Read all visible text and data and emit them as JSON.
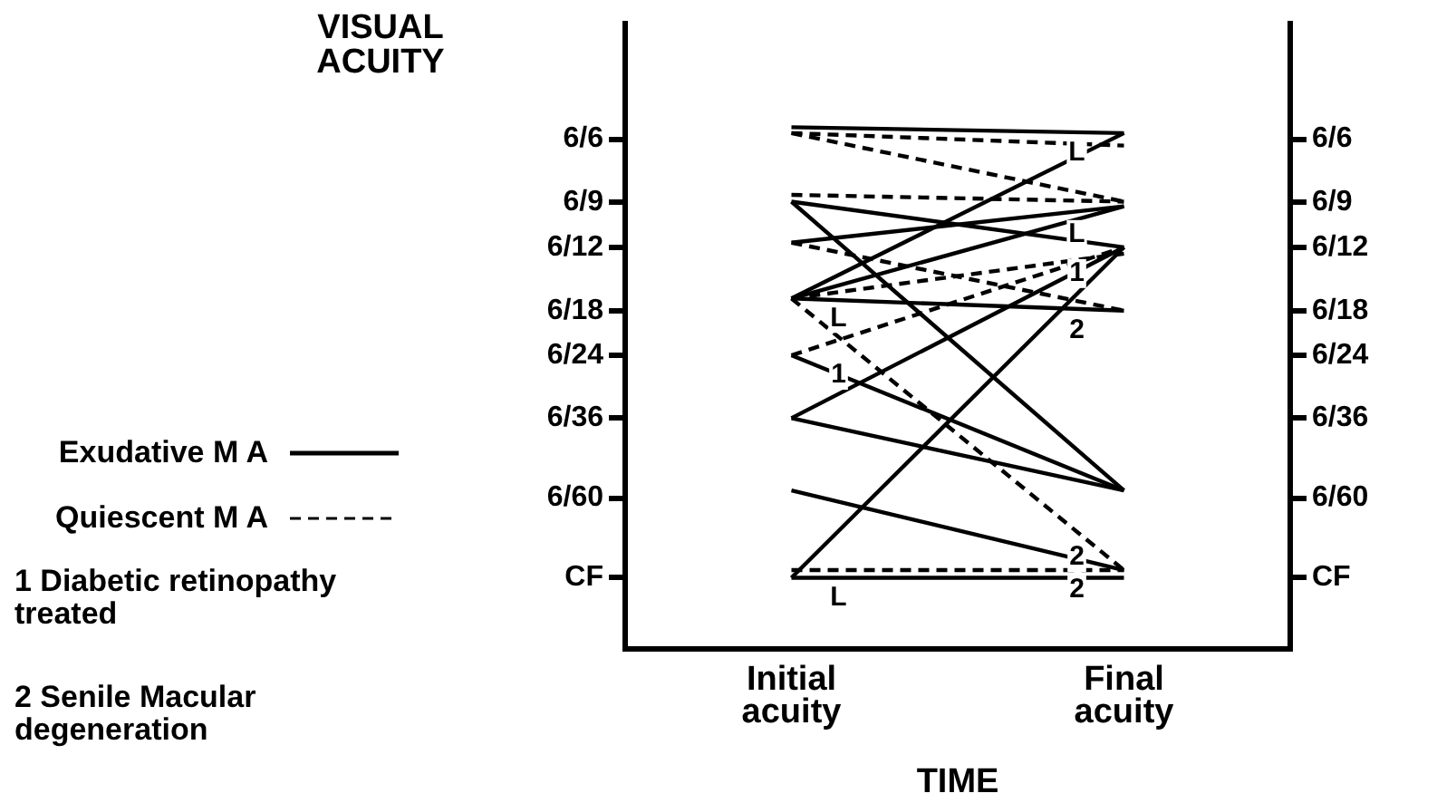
{
  "chart_data": {
    "type": "line",
    "log": true,
    "ylabel": "VISUAL ACUITY",
    "xlabel": "TIME",
    "categories": [
      "Initial acuity",
      "Final acuity"
    ],
    "ylim": [
      0.038,
      2.1
    ],
    "yticks": [
      {
        "value": 0.06,
        "label": "CF"
      },
      {
        "value": 0.1,
        "label": "6/60"
      },
      {
        "value": 0.167,
        "label": "6/36"
      },
      {
        "value": 0.25,
        "label": "6/24"
      },
      {
        "value": 0.333,
        "label": "6/18"
      },
      {
        "value": 0.5,
        "label": "6/12"
      },
      {
        "value": 0.667,
        "label": "6/9"
      },
      {
        "value": 1,
        "label": "6/6"
      }
    ],
    "grid": false,
    "legend": "left",
    "series": [
      {
        "name": "Exudative M A",
        "color": "#000000",
        "line_style": "solid",
        "values": [
          1.08,
          1.04
        ]
      },
      {
        "name": "Quiescent M A",
        "color": "#000000",
        "line_style": "dashed",
        "values": [
          1.04,
          0.96
        ]
      },
      {
        "color": "#000000",
        "line_style": "dashed",
        "values": [
          1.04,
          0.67
        ]
      },
      {
        "color": "#000000",
        "line_style": "dashed",
        "values": [
          0.7,
          0.67
        ]
      },
      {
        "color": "#000000",
        "line_style": "solid",
        "values": [
          0.67,
          0.105
        ]
      },
      {
        "color": "#000000",
        "line_style": "solid",
        "values": [
          0.67,
          0.5
        ]
      },
      {
        "color": "#000000",
        "line_style": "solid",
        "values": [
          0.515,
          0.65
        ]
      },
      {
        "color": "#000000",
        "line_style": "dashed",
        "values": [
          0.515,
          0.333
        ]
      },
      {
        "color": "#000000",
        "line_style": "solid",
        "values": [
          0.36,
          1.04
        ]
      },
      {
        "color": "#000000",
        "line_style": "solid",
        "values": [
          0.36,
          0.65
        ]
      },
      {
        "color": "#000000",
        "line_style": "dashed",
        "values": [
          0.36,
          0.48
        ]
      },
      {
        "color": "#000000",
        "line_style": "solid",
        "values": [
          0.36,
          0.333
        ]
      },
      {
        "color": "#000000",
        "line_style": "dashed",
        "values": [
          0.36,
          0.063
        ]
      },
      {
        "color": "#000000",
        "line_style": "solid",
        "values": [
          0.25,
          0.105
        ]
      },
      {
        "color": "#000000",
        "line_style": "dashed",
        "values": [
          0.25,
          0.5
        ]
      },
      {
        "color": "#000000",
        "line_style": "solid",
        "values": [
          0.167,
          0.105
        ]
      },
      {
        "color": "#000000",
        "line_style": "solid",
        "values": [
          0.167,
          0.5
        ]
      },
      {
        "color": "#000000",
        "line_style": "solid",
        "values": [
          0.105,
          0.063
        ]
      },
      {
        "color": "#000000",
        "line_style": "solid",
        "values": [
          0.06,
          0.5
        ]
      },
      {
        "color": "#000000",
        "line_style": "dashed",
        "values": [
          0.063,
          0.063
        ]
      },
      {
        "color": "#000000",
        "line_style": "solid",
        "values": [
          0.06,
          0.06
        ]
      }
    ],
    "annotations": [
      "1 Diabetic retinopathy treated",
      "2 Senile Macular degeneration",
      {
        "text": "L",
        "x": "Final acuity",
        "y": 1.04
      },
      {
        "text": "L",
        "x": "Initial acuity",
        "y": 0.36
      },
      {
        "text": "2",
        "x": "Final acuity",
        "y": 0.333
      },
      {
        "text": "1",
        "x": "Final acuity",
        "y": 0.48
      },
      {
        "text": "1",
        "x": "Initial acuity",
        "y": 0.25
      },
      {
        "text": "L",
        "x": "Final acuity",
        "y": 0.5
      },
      {
        "text": "2",
        "x": "Final acuity",
        "y": 0.063
      },
      {
        "text": "2",
        "x": "Final acuity",
        "y": 0.063
      },
      {
        "text": "L",
        "x": "Initial acuity",
        "y": 0.06
      }
    ]
  }
}
